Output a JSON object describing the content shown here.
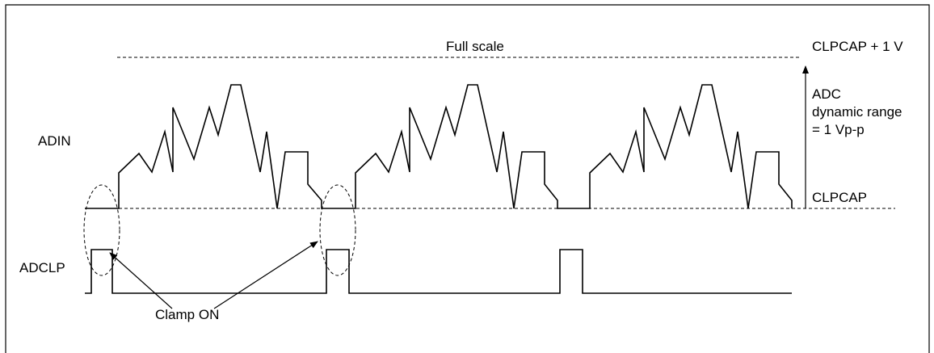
{
  "labels": {
    "full_scale": "Full scale",
    "clpcap_plus": "CLPCAP + 1 V",
    "adc_range_line1": "ADC",
    "adc_range_line2": "dynamic range",
    "adc_range_line3": "= 1 Vp-p",
    "clpcap": "CLPCAP",
    "adin": "ADIN",
    "adclp": "ADCLP",
    "clamp_on": "Clamp ON"
  }
}
